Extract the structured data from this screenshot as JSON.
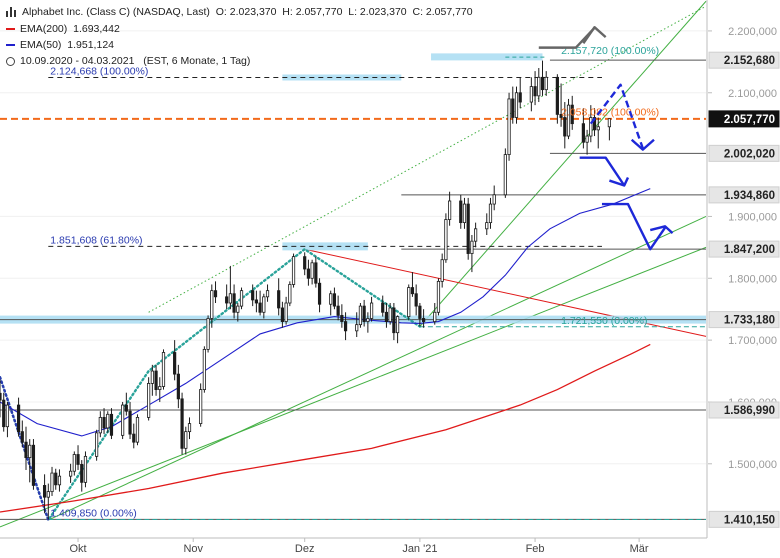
{
  "header": {
    "title": "Alphabet Inc. (Class C) (NASDAQ, Last)",
    "ohlc": "O: 2.023,370  H: 2.057,770  L: 2.023,370  C: 2.057,770",
    "ema200_label": "EMA(200)",
    "ema200_value": "1.693,442",
    "ema50_label": "EMA(50)",
    "ema50_value": "1.951,124",
    "range": "10.09.2020 - 04.03.2021",
    "range_detail": "(EST, 6 Monate, 1 Tag)"
  },
  "colors": {
    "ema200": "#e01a1a",
    "ema50": "#2020cc",
    "fib_level": "#2a3bb0",
    "last_price": "#f26a1b",
    "fib_support": "#2aa39a",
    "trendline": "#44b044",
    "highlight": "#a8dcf2",
    "projection": "#1d28d8"
  },
  "chart_data": {
    "type": "candlestick",
    "ylim": [
      1380,
      2250
    ],
    "y_ticks": [
      {
        "value": 2200,
        "label": "2.200,000"
      },
      {
        "value": 2100,
        "label": "2.100,000"
      },
      {
        "value": 1900,
        "label": "1.900,000"
      },
      {
        "value": 1800,
        "label": "1.800,000"
      },
      {
        "value": 1700,
        "label": "1.700,000"
      },
      {
        "value": 1600,
        "label": "1.600,000"
      },
      {
        "value": 1500,
        "label": "1.500,000"
      }
    ],
    "x_labels": [
      {
        "day": 21,
        "label": "Okt"
      },
      {
        "day": 52,
        "label": "Nov"
      },
      {
        "day": 82,
        "label": "Dez"
      },
      {
        "day": 113,
        "label": "Jan '21"
      },
      {
        "day": 144,
        "label": "Feb"
      },
      {
        "day": 172,
        "label": "Mär"
      }
    ],
    "price_levels": [
      {
        "value": 2152.68,
        "label": "2.152,680"
      },
      {
        "value": 2057.77,
        "label": "2.057,770",
        "current": true
      },
      {
        "value": 2002.02,
        "label": "2.002,020"
      },
      {
        "value": 1934.86,
        "label": "1.934,860"
      },
      {
        "value": 1847.2,
        "label": "1.847,200"
      },
      {
        "value": 1733.18,
        "label": "1.733,180"
      },
      {
        "value": 1586.99,
        "label": "1.586,990"
      },
      {
        "value": 1410.15,
        "label": "1.410,150"
      }
    ],
    "fib_annotations": [
      {
        "label": "2.124,668 (100.00%)",
        "value": 2124.668
      },
      {
        "label": "1.851,608 (61.80%)",
        "value": 1851.608
      },
      {
        "label": "1.409,850 (0.00%)",
        "value": 1409.85
      }
    ],
    "fib_annotations_right": [
      {
        "label": "2.157,720 (100.00%)",
        "value": 2157.72,
        "kind": "support"
      },
      {
        "label": "2.058,082 (100.00%)",
        "value": 2058.082,
        "kind": "last"
      },
      {
        "label": "1.721,550 (0.00%)",
        "value": 1721.55,
        "kind": "support"
      }
    ],
    "candles": [
      [
        0,
        1614,
        1636,
        1575,
        1603
      ],
      [
        1,
        1603,
        1615,
        1552,
        1560
      ],
      [
        2,
        1560,
        1600,
        1543,
        1595
      ],
      [
        5,
        1595,
        1607,
        1544,
        1552
      ],
      [
        6,
        1552,
        1570,
        1527,
        1535
      ],
      [
        7,
        1535,
        1560,
        1490,
        1510
      ],
      [
        8,
        1510,
        1540,
        1470,
        1530
      ],
      [
        9,
        1530,
        1540,
        1458,
        1465
      ],
      [
        12,
        1465,
        1483,
        1420,
        1446
      ],
      [
        13,
        1446,
        1468,
        1410,
        1455
      ],
      [
        14,
        1455,
        1495,
        1448,
        1485
      ],
      [
        15,
        1485,
        1492,
        1458,
        1466
      ],
      [
        16,
        1466,
        1491,
        1455,
        1480
      ],
      [
        19,
        1480,
        1500,
        1469,
        1488
      ],
      [
        20,
        1488,
        1520,
        1481,
        1515
      ],
      [
        21,
        1515,
        1530,
        1490,
        1499
      ],
      [
        22,
        1499,
        1506,
        1455,
        1470
      ],
      [
        23,
        1470,
        1520,
        1462,
        1512
      ],
      [
        26,
        1512,
        1555,
        1505,
        1550
      ],
      [
        27,
        1550,
        1585,
        1543,
        1575
      ],
      [
        28,
        1575,
        1590,
        1548,
        1558
      ],
      [
        29,
        1558,
        1585,
        1550,
        1580
      ],
      [
        30,
        1580,
        1590,
        1540,
        1546
      ],
      [
        33,
        1546,
        1600,
        1540,
        1595
      ],
      [
        34,
        1595,
        1615,
        1578,
        1585
      ],
      [
        35,
        1585,
        1600,
        1540,
        1548
      ],
      [
        36,
        1548,
        1565,
        1525,
        1535
      ],
      [
        37,
        1535,
        1580,
        1530,
        1575
      ],
      [
        40,
        1575,
        1640,
        1570,
        1630
      ],
      [
        41,
        1630,
        1660,
        1610,
        1650
      ],
      [
        42,
        1650,
        1660,
        1610,
        1620
      ],
      [
        43,
        1620,
        1640,
        1600,
        1625
      ],
      [
        44,
        1625,
        1685,
        1620,
        1680
      ],
      [
        47,
        1680,
        1700,
        1635,
        1645
      ],
      [
        48,
        1645,
        1660,
        1590,
        1605
      ],
      [
        49,
        1605,
        1615,
        1515,
        1525
      ],
      [
        50,
        1525,
        1560,
        1515,
        1552
      ],
      [
        51,
        1552,
        1575,
        1540,
        1565
      ],
      [
        54,
        1565,
        1630,
        1560,
        1620
      ],
      [
        55,
        1620,
        1690,
        1615,
        1685
      ],
      [
        56,
        1685,
        1740,
        1680,
        1735
      ],
      [
        57,
        1735,
        1790,
        1720,
        1780
      ],
      [
        58,
        1780,
        1795,
        1760,
        1770
      ],
      [
        61,
        1770,
        1790,
        1750,
        1760
      ],
      [
        62,
        1760,
        1820,
        1750,
        1775
      ],
      [
        63,
        1775,
        1790,
        1735,
        1745
      ],
      [
        64,
        1745,
        1760,
        1730,
        1755
      ],
      [
        65,
        1755,
        1785,
        1750,
        1780
      ],
      [
        68,
        1780,
        1790,
        1755,
        1765
      ],
      [
        69,
        1765,
        1780,
        1745,
        1760
      ],
      [
        70,
        1760,
        1780,
        1740,
        1745
      ],
      [
        71,
        1745,
        1775,
        1735,
        1770
      ],
      [
        72,
        1770,
        1790,
        1762,
        1780
      ],
      [
        75,
        1780,
        1800,
        1740,
        1752
      ],
      [
        76,
        1752,
        1762,
        1720,
        1730
      ],
      [
        77,
        1730,
        1770,
        1725,
        1760
      ],
      [
        78,
        1760,
        1795,
        1755,
        1790
      ],
      [
        79,
        1790,
        1840,
        1785,
        1835
      ],
      [
        82,
        1835,
        1842,
        1805,
        1815
      ],
      [
        83,
        1815,
        1830,
        1788,
        1800
      ],
      [
        84,
        1800,
        1830,
        1790,
        1825
      ],
      [
        85,
        1825,
        1835,
        1785,
        1792
      ],
      [
        86,
        1792,
        1800,
        1745,
        1758
      ],
      [
        89,
        1758,
        1780,
        1740,
        1775
      ],
      [
        90,
        1775,
        1785,
        1750,
        1755
      ],
      [
        91,
        1755,
        1772,
        1732,
        1740
      ],
      [
        92,
        1740,
        1758,
        1720,
        1730
      ],
      [
        93,
        1730,
        1745,
        1700,
        1715
      ],
      [
        96,
        1715,
        1745,
        1705,
        1725
      ],
      [
        97,
        1725,
        1760,
        1720,
        1755
      ],
      [
        98,
        1755,
        1765,
        1722,
        1730
      ],
      [
        99,
        1730,
        1745,
        1712,
        1735
      ],
      [
        100,
        1735,
        1770,
        1730,
        1760
      ],
      [
        103,
        1760,
        1772,
        1738,
        1745
      ],
      [
        104,
        1745,
        1760,
        1720,
        1730
      ],
      [
        105,
        1730,
        1760,
        1725,
        1752
      ],
      [
        106,
        1752,
        1760,
        1700,
        1712
      ],
      [
        107,
        1712,
        1740,
        1695,
        1738
      ],
      [
        110,
        1738,
        1790,
        1732,
        1785
      ],
      [
        111,
        1785,
        1810,
        1770,
        1775
      ],
      [
        112,
        1775,
        1790,
        1740,
        1755
      ],
      [
        113,
        1755,
        1760,
        1722,
        1735
      ],
      [
        114,
        1735,
        1750,
        1720,
        1730
      ],
      [
        117,
        1730,
        1760,
        1725,
        1745
      ],
      [
        118,
        1745,
        1800,
        1740,
        1795
      ],
      [
        119,
        1795,
        1840,
        1785,
        1830
      ],
      [
        120,
        1830,
        1905,
        1825,
        1895
      ],
      [
        121,
        1895,
        1940,
        1885,
        1925
      ],
      [
        124,
        1925,
        1935,
        1880,
        1890
      ],
      [
        125,
        1890,
        1930,
        1880,
        1920
      ],
      [
        126,
        1920,
        1930,
        1830,
        1840
      ],
      [
        127,
        1840,
        1870,
        1810,
        1860
      ],
      [
        128,
        1860,
        1890,
        1850,
        1880
      ],
      [
        131,
        1880,
        1905,
        1870,
        1890
      ],
      [
        132,
        1890,
        1930,
        1880,
        1920
      ],
      [
        133,
        1920,
        1950,
        1910,
        1935
      ],
      [
        136,
        1935,
        2010,
        1930,
        2000
      ],
      [
        137,
        2000,
        2100,
        1990,
        2090
      ],
      [
        138,
        2090,
        2110,
        2050,
        2060
      ],
      [
        139,
        2060,
        2110,
        2050,
        2100
      ],
      [
        140,
        2100,
        2125,
        2075,
        2085
      ],
      [
        143,
        2085,
        2125,
        2070,
        2110
      ],
      [
        144,
        2110,
        2135,
        2080,
        2095
      ],
      [
        145,
        2095,
        2140,
        2085,
        2125
      ],
      [
        146,
        2125,
        2152,
        2095,
        2105
      ],
      [
        147,
        2105,
        2135,
        2095,
        2125
      ],
      [
        150,
        2125,
        2130,
        2050,
        2065
      ],
      [
        151,
        2065,
        2115,
        2045,
        2060
      ],
      [
        152,
        2060,
        2085,
        2010,
        2030
      ],
      [
        153,
        2030,
        2090,
        2025,
        2080
      ],
      [
        154,
        2080,
        2095,
        2040,
        2050
      ],
      [
        157,
        2050,
        2075,
        2010,
        2020
      ],
      [
        158,
        2020,
        2040,
        2000,
        2030
      ],
      [
        159,
        2030,
        2080,
        2020,
        2060
      ],
      [
        160,
        2060,
        2075,
        2030,
        2040
      ],
      [
        161,
        2040,
        2060,
        2010,
        2045
      ],
      [
        164,
        2045,
        2058,
        2023,
        2058
      ]
    ],
    "ema50_series": [
      [
        0,
        1600
      ],
      [
        10,
        1565
      ],
      [
        22,
        1545
      ],
      [
        30,
        1560
      ],
      [
        40,
        1595
      ],
      [
        50,
        1630
      ],
      [
        60,
        1670
      ],
      [
        70,
        1710
      ],
      [
        80,
        1728
      ],
      [
        90,
        1738
      ],
      [
        100,
        1732
      ],
      [
        108,
        1728
      ],
      [
        113,
        1727
      ],
      [
        118,
        1730
      ],
      [
        124,
        1745
      ],
      [
        130,
        1770
      ],
      [
        136,
        1805
      ],
      [
        142,
        1850
      ],
      [
        148,
        1880
      ],
      [
        156,
        1905
      ],
      [
        165,
        1920
      ],
      [
        171,
        1935
      ],
      [
        175,
        1945
      ]
    ],
    "ema200_series": [
      [
        0,
        1422
      ],
      [
        20,
        1440
      ],
      [
        40,
        1460
      ],
      [
        60,
        1485
      ],
      [
        80,
        1505
      ],
      [
        100,
        1525
      ],
      [
        120,
        1555
      ],
      [
        140,
        1595
      ],
      [
        150,
        1620
      ],
      [
        160,
        1650
      ],
      [
        170,
        1678
      ],
      [
        175,
        1693
      ]
    ]
  }
}
